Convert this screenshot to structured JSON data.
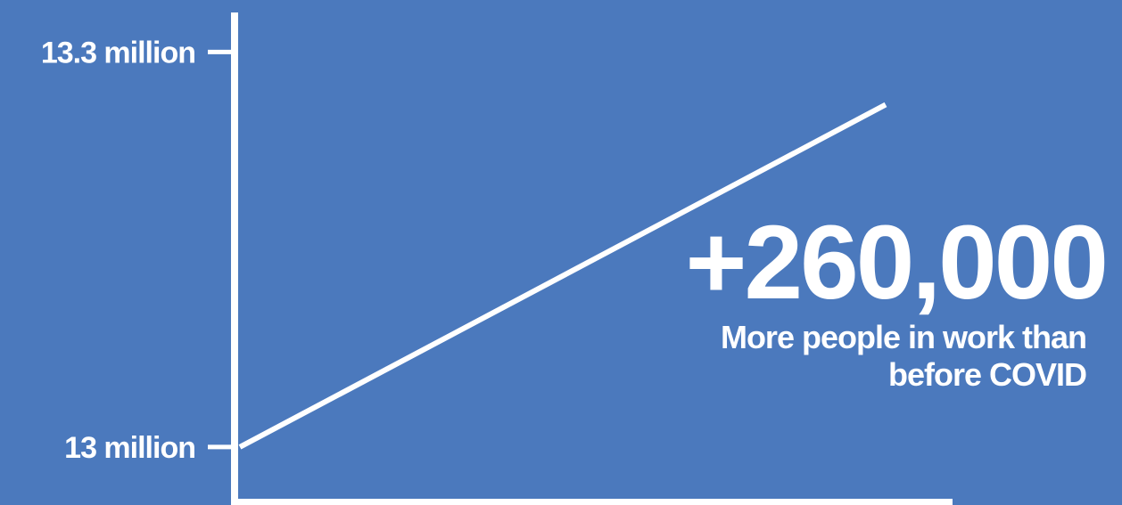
{
  "colors": {
    "background": "#4b79bd",
    "foreground": "#ffffff"
  },
  "chart_data": {
    "type": "line",
    "title": "",
    "xlabel": "",
    "ylabel": "",
    "ylim": [
      12.96,
      13.33
    ],
    "y_ticks": [
      {
        "value": 13.0,
        "label": "13 million"
      },
      {
        "value": 13.3,
        "label": "13.3 million"
      }
    ],
    "x": [
      0,
      1
    ],
    "series": [
      {
        "values": [
          13.0,
          13.26
        ]
      }
    ],
    "grid": false,
    "legend": "none",
    "annotations": [
      {
        "text": "+260,000",
        "caption": "More people in work than before COVID"
      }
    ]
  }
}
